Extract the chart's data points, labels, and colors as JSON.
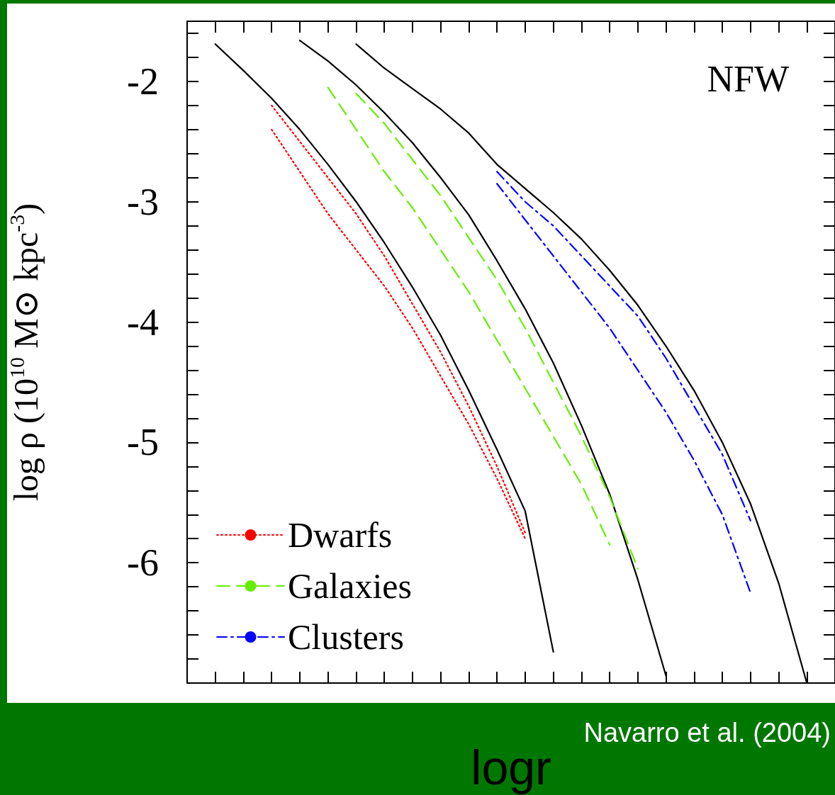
{
  "chart_data": {
    "type": "line",
    "ylabel": "log ρ (10$^{10}$ M⊙ kpc$^{-3}$)",
    "xlabel": "logr",
    "annotations": [
      "NFW",
      "Navarro et al. (2004)"
    ],
    "categories": [
      null,
      null,
      null,
      null,
      null,
      null,
      null,
      null,
      null,
      null,
      null,
      null,
      null,
      null,
      null,
      null,
      null,
      null,
      null,
      null,
      null,
      null,
      null,
      null
    ],
    "ylim": [
      -7,
      -1.5
    ],
    "yticks": [
      {
        "value": -1.6,
        "label": null
      },
      {
        "value": -1.8,
        "label": null
      },
      -2,
      {
        "value": -2.2,
        "label": null
      },
      {
        "value": -2.4,
        "label": null
      },
      {
        "value": -2.6,
        "label": null
      },
      {
        "value": -2.8,
        "label": null
      },
      -3,
      {
        "value": -3.2,
        "label": null
      },
      {
        "value": -3.4,
        "label": null
      },
      {
        "value": -3.6,
        "label": null
      },
      {
        "value": -3.8,
        "label": null
      },
      -4,
      {
        "value": -4.2,
        "label": null
      },
      {
        "value": -4.4,
        "label": null
      },
      {
        "value": -4.6,
        "label": null
      },
      {
        "value": -4.8,
        "label": null
      },
      -5,
      {
        "value": -5.2,
        "label": null
      },
      {
        "value": -5.4,
        "label": null
      },
      {
        "value": -5.6,
        "label": null
      },
      {
        "value": -5.8,
        "label": null
      },
      -6,
      {
        "value": -6.2,
        "label": null
      },
      {
        "value": -6.4,
        "label": null
      },
      {
        "value": -6.6,
        "label": null
      },
      {
        "value": -6.8,
        "label": null
      }
    ],
    "tick_labels": "y",
    "grid": false,
    "legend": "bottom left",
    "marker": "none",
    "series": [
      {
        "color": "#000000",
        "line_style": "solid",
        "values": [
          null,
          -1.69,
          -1.91,
          -2.14,
          -2.4,
          -2.69,
          -3.0,
          -3.34,
          -3.71,
          -4.11,
          -4.57,
          -5.06,
          -5.57,
          -6.74,
          null,
          null,
          null,
          null,
          null,
          null,
          null,
          null,
          null,
          null
        ]
      },
      {
        "color": "#000000",
        "line_style": "solid",
        "values": [
          null,
          null,
          null,
          null,
          -1.66,
          -1.83,
          -2.03,
          -2.26,
          -2.51,
          -2.8,
          -3.11,
          -3.49,
          -3.89,
          -4.34,
          -4.86,
          -5.43,
          -6.14,
          -6.94,
          null,
          null,
          null,
          null,
          null,
          null
        ]
      },
      {
        "color": "#000000",
        "line_style": "solid",
        "values": [
          null,
          null,
          null,
          null,
          null,
          null,
          -1.69,
          -1.89,
          -2.06,
          -2.23,
          -2.43,
          -2.69,
          -2.89,
          -3.09,
          -3.31,
          -3.57,
          -3.86,
          -4.2,
          -4.57,
          -5.0,
          -5.51,
          -6.17,
          -7.0,
          null
        ]
      },
      {
        "name": "Dwarfs",
        "color": "#ff0000",
        "line_style": "dotted",
        "values": [
          null,
          null,
          null,
          -2.2,
          -2.5,
          -2.8,
          -3.1,
          -3.45,
          -3.85,
          -4.25,
          -4.7,
          -5.2,
          -5.75,
          null,
          null,
          null,
          null,
          null,
          null,
          null,
          null,
          null,
          null,
          null
        ]
      },
      {
        "color": "#ff0000",
        "line_style": "dotted",
        "values": [
          null,
          null,
          null,
          -2.4,
          -2.75,
          -3.1,
          -3.4,
          -3.7,
          -4.05,
          -4.45,
          -4.85,
          -5.3,
          -5.8,
          null,
          null,
          null,
          null,
          null,
          null,
          null,
          null,
          null,
          null,
          null
        ]
      },
      {
        "name": "Galaxies",
        "color": "#66ee00",
        "line_style": "dashed",
        "values": [
          null,
          null,
          null,
          null,
          null,
          null,
          -2.1,
          -2.35,
          -2.65,
          -2.95,
          -3.3,
          -3.65,
          -4.05,
          -4.5,
          -4.95,
          -5.45,
          -6.05,
          null,
          null,
          null,
          null,
          null,
          null,
          null
        ]
      },
      {
        "color": "#66ee00",
        "line_style": "dashed",
        "values": [
          null,
          null,
          null,
          null,
          null,
          -2.05,
          -2.4,
          -2.75,
          -3.05,
          -3.4,
          -3.75,
          -4.15,
          -4.55,
          -4.95,
          -5.35,
          -5.85,
          null,
          null,
          null,
          null,
          null,
          null,
          null,
          null
        ]
      },
      {
        "name": "Clusters",
        "color": "#0000ff",
        "line_style": "dashdot",
        "values": [
          null,
          null,
          null,
          null,
          null,
          null,
          null,
          null,
          null,
          null,
          null,
          -2.75,
          -3.0,
          -3.2,
          -3.45,
          -3.7,
          -3.95,
          -4.3,
          -4.7,
          -5.1,
          -5.65,
          null,
          null,
          null
        ]
      },
      {
        "color": "#0000ff",
        "line_style": "dashdot",
        "values": [
          null,
          null,
          null,
          null,
          null,
          null,
          null,
          null,
          null,
          null,
          null,
          -2.85,
          -3.15,
          -3.45,
          -3.75,
          -4.05,
          -4.4,
          -4.75,
          -5.15,
          -5.6,
          -6.25,
          null,
          null,
          null
        ]
      }
    ]
  }
}
